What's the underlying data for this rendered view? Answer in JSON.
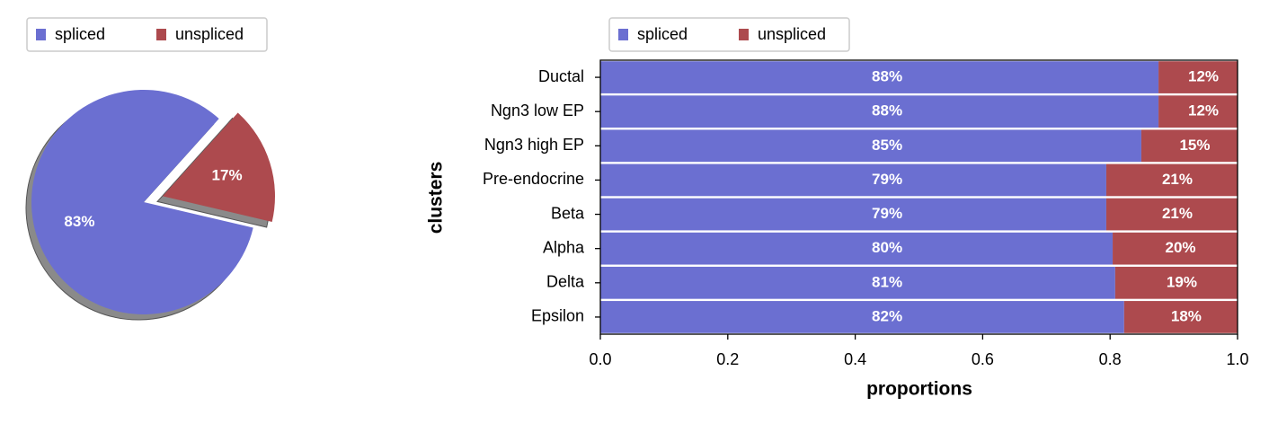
{
  "chart_data": [
    {
      "type": "pie",
      "categories": [
        "spliced",
        "unspliced"
      ],
      "values": [
        83,
        17
      ],
      "value_labels": [
        "83%",
        "17%"
      ],
      "colors": [
        "#6b6fd1",
        "#ad4a4e"
      ],
      "legend": "upper left"
    },
    {
      "type": "hbar_stacked",
      "xlabel": "proportions",
      "ylabel": "clusters",
      "categories": [
        "Ductal",
        "Ngn3 low EP",
        "Ngn3 high EP",
        "Pre-endocrine",
        "Beta",
        "Alpha",
        "Delta",
        "Epsilon"
      ],
      "series": [
        {
          "name": "spliced",
          "color": "#6b6fd1",
          "values": [
            0.876,
            0.876,
            0.849,
            0.794,
            0.794,
            0.804,
            0.808,
            0.822
          ],
          "value_labels": [
            "88%",
            "88%",
            "85%",
            "79%",
            "79%",
            "80%",
            "81%",
            "82%"
          ]
        },
        {
          "name": "unspliced",
          "color": "#ad4a4e",
          "values": [
            0.124,
            0.124,
            0.151,
            0.206,
            0.206,
            0.196,
            0.192,
            0.178
          ],
          "value_labels": [
            "12%",
            "12%",
            "15%",
            "21%",
            "21%",
            "20%",
            "19%",
            "18%"
          ]
        }
      ],
      "xlim": [
        0,
        1
      ],
      "xticks": [
        {
          "value": 0,
          "label": "0.0"
        },
        0.2,
        0.4,
        0.6,
        0.8,
        {
          "value": 1,
          "label": "1.0"
        }
      ],
      "legend": "upper left"
    }
  ]
}
